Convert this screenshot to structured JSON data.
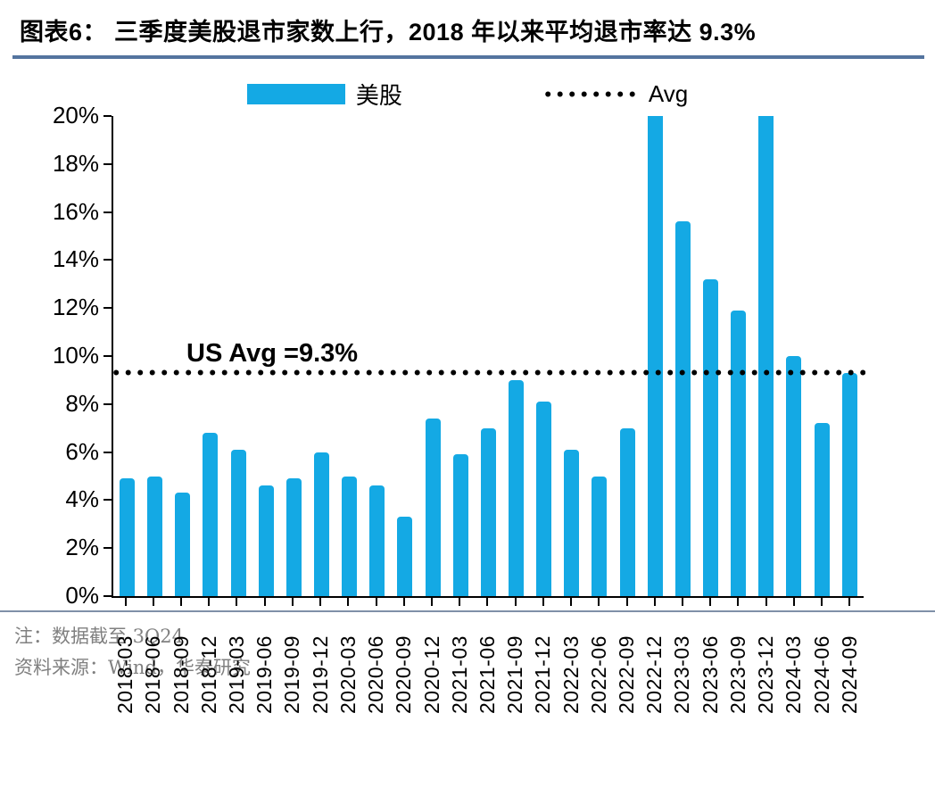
{
  "header": {
    "title": "图表6：  三季度美股退市家数上行，2018 年以来平均退市率达 9.3%"
  },
  "legend": {
    "bar_label": "美股",
    "avg_label": "Avg"
  },
  "chart_data": {
    "type": "bar",
    "title": "图表6：三季度美股退市家数上行，2018 年以来平均退市率达 9.3%",
    "xlabel": "",
    "ylabel": "",
    "ylim": [
      0,
      20
    ],
    "y_ticks": [
      "0%",
      "2%",
      "4%",
      "6%",
      "8%",
      "10%",
      "12%",
      "14%",
      "16%",
      "18%",
      "20%"
    ],
    "grid": false,
    "legend_position": "top",
    "categories": [
      "2018-03",
      "2018-06",
      "2018-09",
      "2018-12",
      "2019-03",
      "2019-06",
      "2019-09",
      "2019-12",
      "2020-03",
      "2020-06",
      "2020-09",
      "2020-12",
      "2021-03",
      "2021-06",
      "2021-09",
      "2021-12",
      "2022-03",
      "2022-06",
      "2022-09",
      "2022-12",
      "2023-03",
      "2023-06",
      "2023-09",
      "2023-12",
      "2024-03",
      "2024-06",
      "2024-09"
    ],
    "series": [
      {
        "name": "美股",
        "values": [
          4.9,
          5.0,
          4.3,
          6.8,
          6.1,
          4.6,
          4.9,
          6.0,
          5.0,
          4.6,
          3.3,
          7.4,
          5.9,
          7.0,
          9.0,
          8.1,
          6.1,
          5.0,
          7.0,
          20.0,
          15.6,
          13.2,
          11.9,
          20.0,
          10.0,
          7.2,
          9.3
        ]
      }
    ],
    "values_clipped_at_ymax": [
      "2022-12",
      "2023-12"
    ],
    "avg_line": {
      "label": "Avg",
      "value": 9.3,
      "style": "dotted",
      "annotation": "US Avg =9.3%"
    }
  },
  "footer": {
    "note": "注：数据截至 3Q24",
    "source": "资料来源：Wind，华泰研究"
  },
  "colors": {
    "bar": "#14A9E4",
    "title_rule": "#54749F",
    "footer_rule": "#7F90A8",
    "avg_dots": "#000000",
    "footer_text": "#808080"
  }
}
